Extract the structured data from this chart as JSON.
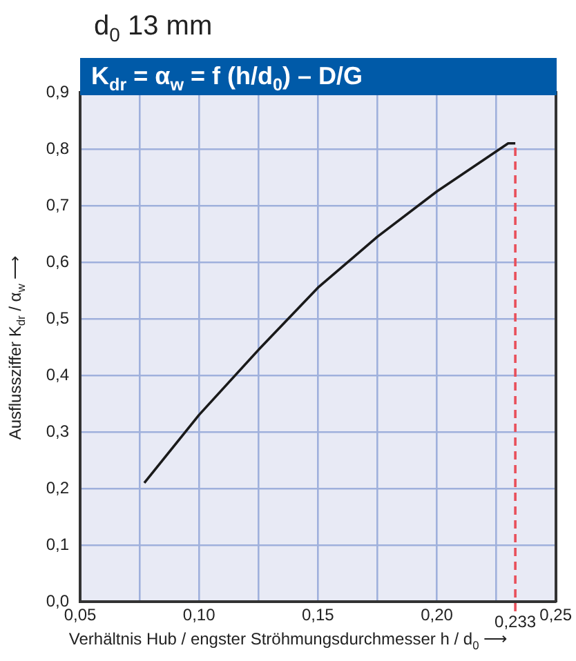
{
  "chart_data": {
    "type": "line",
    "subtitle": "d$_{0}$ 13 mm",
    "title": "K$_{dr}$ = α$_{w}$ = f (h/d$_{0}$) – D/G",
    "xlabel": "Verhältnis Hub / engster Ströhmungsdurchmesser h / d$_{0}$ ⟶",
    "ylabel": "Ausflussziffer K$_{dr}$ / α$_{w}$ ⟶",
    "x": [
      0.077,
      0.1,
      0.125,
      0.15,
      0.175,
      0.2,
      0.23,
      0.233
    ],
    "series": [
      {
        "color": "#1a1a1a",
        "values": [
          0.21,
          0.33,
          0.445,
          0.555,
          0.645,
          0.725,
          0.81,
          0.81
        ]
      }
    ],
    "xlim": [
      0.05,
      0.25
    ],
    "xticks": [
      {
        "value": 0.05,
        "label": "0,05"
      },
      {
        "value": 0.075,
        "label": null
      },
      {
        "value": 0.1,
        "label": "0,10"
      },
      {
        "value": 0.125,
        "label": null
      },
      {
        "value": 0.15,
        "label": "0,15"
      },
      {
        "value": 0.175,
        "label": null
      },
      {
        "value": 0.2,
        "label": "0,20"
      },
      {
        "value": 0.225,
        "label": null
      },
      {
        "value": 0.25,
        "label": "0,25"
      }
    ],
    "ylim": [
      0,
      0.9
    ],
    "yticks": [
      {
        "value": 0,
        "label": "0,0"
      },
      {
        "value": 0.1,
        "label": "0,1"
      },
      {
        "value": 0.2,
        "label": "0,2"
      },
      {
        "value": 0.3,
        "label": "0,3"
      },
      {
        "value": 0.4,
        "label": "0,4"
      },
      {
        "value": 0.5,
        "label": "0,5"
      },
      {
        "value": 0.6,
        "label": "0,6"
      },
      {
        "value": 0.7,
        "label": "0,7"
      },
      {
        "value": 0.8,
        "label": "0,8"
      },
      {
        "value": 0.9,
        "label": "0,9"
      }
    ],
    "ref_lines": [
      {
        "axis": "x",
        "value": 0.233,
        "label": "0,233",
        "color": "#e8505b",
        "line_style": "dashed"
      }
    ],
    "grid": true,
    "legend": false,
    "marker": "none",
    "line_style": "solid"
  }
}
